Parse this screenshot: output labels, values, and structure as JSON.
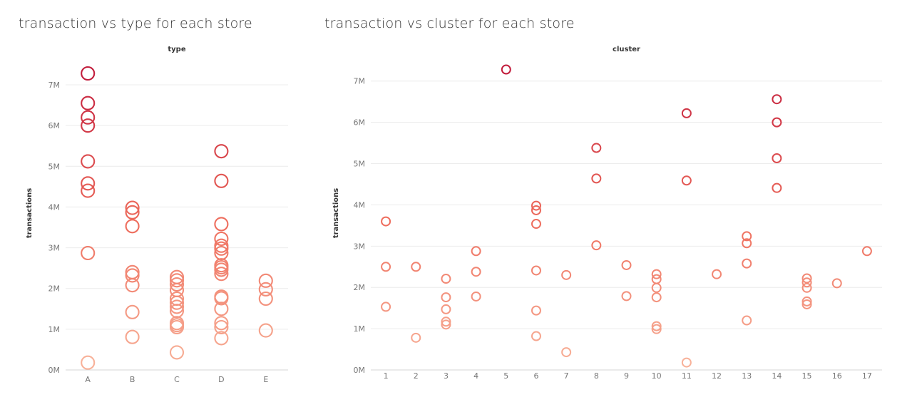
{
  "chart_data": [
    {
      "type": "scatter",
      "title": "transaction vs type for each store",
      "column_header": "type",
      "ylabel": "transactions",
      "categories": [
        "A",
        "B",
        "C",
        "D",
        "E"
      ],
      "ylim": [
        0,
        7700000
      ],
      "y_ticks": [
        "0M",
        "1M",
        "2M",
        "3M",
        "4M",
        "5M",
        "6M",
        "7M"
      ],
      "y_tick_values": [
        0,
        1000000,
        2000000,
        3000000,
        4000000,
        5000000,
        6000000,
        7000000
      ],
      "grid": true,
      "color_scale": {
        "low": "#f8b59c",
        "mid": "#ee6c5c",
        "high": "#c21d3c"
      },
      "points": [
        {
          "x": "A",
          "y": 7280000
        },
        {
          "x": "A",
          "y": 6550000
        },
        {
          "x": "A",
          "y": 6200000
        },
        {
          "x": "A",
          "y": 6000000
        },
        {
          "x": "A",
          "y": 5120000
        },
        {
          "x": "A",
          "y": 4580000
        },
        {
          "x": "A",
          "y": 4400000
        },
        {
          "x": "A",
          "y": 2870000
        },
        {
          "x": "A",
          "y": 180000
        },
        {
          "x": "B",
          "y": 3980000
        },
        {
          "x": "B",
          "y": 3870000
        },
        {
          "x": "B",
          "y": 3530000
        },
        {
          "x": "B",
          "y": 2400000
        },
        {
          "x": "B",
          "y": 2320000
        },
        {
          "x": "B",
          "y": 2080000
        },
        {
          "x": "B",
          "y": 1420000
        },
        {
          "x": "B",
          "y": 810000
        },
        {
          "x": "C",
          "y": 2280000
        },
        {
          "x": "C",
          "y": 2200000
        },
        {
          "x": "C",
          "y": 2100000
        },
        {
          "x": "C",
          "y": 1960000
        },
        {
          "x": "C",
          "y": 1750000
        },
        {
          "x": "C",
          "y": 1650000
        },
        {
          "x": "C",
          "y": 1550000
        },
        {
          "x": "C",
          "y": 1450000
        },
        {
          "x": "C",
          "y": 1150000
        },
        {
          "x": "C",
          "y": 1100000
        },
        {
          "x": "C",
          "y": 1050000
        },
        {
          "x": "C",
          "y": 430000
        },
        {
          "x": "D",
          "y": 5370000
        },
        {
          "x": "D",
          "y": 4640000
        },
        {
          "x": "D",
          "y": 3580000
        },
        {
          "x": "D",
          "y": 3220000
        },
        {
          "x": "D",
          "y": 3050000
        },
        {
          "x": "D",
          "y": 2980000
        },
        {
          "x": "D",
          "y": 2870000
        },
        {
          "x": "D",
          "y": 2570000
        },
        {
          "x": "D",
          "y": 2520000
        },
        {
          "x": "D",
          "y": 2460000
        },
        {
          "x": "D",
          "y": 2360000
        },
        {
          "x": "D",
          "y": 1800000
        },
        {
          "x": "D",
          "y": 1760000
        },
        {
          "x": "D",
          "y": 1500000
        },
        {
          "x": "D",
          "y": 1150000
        },
        {
          "x": "D",
          "y": 1050000
        },
        {
          "x": "D",
          "y": 780000
        },
        {
          "x": "E",
          "y": 2190000
        },
        {
          "x": "E",
          "y": 1980000
        },
        {
          "x": "E",
          "y": 1750000
        },
        {
          "x": "E",
          "y": 970000
        }
      ]
    },
    {
      "type": "scatter",
      "title": "transaction vs cluster for each store",
      "column_header": "cluster",
      "ylabel": "transactions",
      "categories": [
        "1",
        "2",
        "3",
        "4",
        "5",
        "6",
        "7",
        "8",
        "9",
        "10",
        "11",
        "12",
        "13",
        "14",
        "15",
        "16",
        "17"
      ],
      "ylim": [
        0,
        7600000
      ],
      "y_ticks": [
        "0M",
        "1M",
        "2M",
        "3M",
        "4M",
        "5M",
        "6M",
        "7M"
      ],
      "y_tick_values": [
        0,
        1000000,
        2000000,
        3000000,
        4000000,
        5000000,
        6000000,
        7000000
      ],
      "grid": true,
      "color_scale": {
        "low": "#f8b59c",
        "mid": "#ee6c5c",
        "high": "#c21d3c"
      },
      "points": [
        {
          "x": "1",
          "y": 3600000
        },
        {
          "x": "1",
          "y": 2500000
        },
        {
          "x": "1",
          "y": 1530000
        },
        {
          "x": "2",
          "y": 2500000
        },
        {
          "x": "2",
          "y": 780000
        },
        {
          "x": "3",
          "y": 2210000
        },
        {
          "x": "3",
          "y": 1760000
        },
        {
          "x": "3",
          "y": 1470000
        },
        {
          "x": "3",
          "y": 1170000
        },
        {
          "x": "3",
          "y": 1100000
        },
        {
          "x": "4",
          "y": 2880000
        },
        {
          "x": "4",
          "y": 2380000
        },
        {
          "x": "4",
          "y": 1780000
        },
        {
          "x": "5",
          "y": 7280000
        },
        {
          "x": "6",
          "y": 3980000
        },
        {
          "x": "6",
          "y": 3870000
        },
        {
          "x": "6",
          "y": 3540000
        },
        {
          "x": "6",
          "y": 2410000
        },
        {
          "x": "6",
          "y": 1440000
        },
        {
          "x": "6",
          "y": 820000
        },
        {
          "x": "7",
          "y": 2300000
        },
        {
          "x": "7",
          "y": 430000
        },
        {
          "x": "8",
          "y": 5380000
        },
        {
          "x": "8",
          "y": 4640000
        },
        {
          "x": "8",
          "y": 3020000
        },
        {
          "x": "9",
          "y": 2540000
        },
        {
          "x": "9",
          "y": 1790000
        },
        {
          "x": "10",
          "y": 2320000
        },
        {
          "x": "10",
          "y": 2200000
        },
        {
          "x": "10",
          "y": 1990000
        },
        {
          "x": "10",
          "y": 1760000
        },
        {
          "x": "10",
          "y": 1060000
        },
        {
          "x": "10",
          "y": 990000
        },
        {
          "x": "11",
          "y": 6220000
        },
        {
          "x": "11",
          "y": 4590000
        },
        {
          "x": "11",
          "y": 180000
        },
        {
          "x": "12",
          "y": 2320000
        },
        {
          "x": "13",
          "y": 3240000
        },
        {
          "x": "13",
          "y": 3070000
        },
        {
          "x": "13",
          "y": 2580000
        },
        {
          "x": "13",
          "y": 1200000
        },
        {
          "x": "14",
          "y": 6560000
        },
        {
          "x": "14",
          "y": 6000000
        },
        {
          "x": "14",
          "y": 5130000
        },
        {
          "x": "14",
          "y": 4410000
        },
        {
          "x": "15",
          "y": 2220000
        },
        {
          "x": "15",
          "y": 2120000
        },
        {
          "x": "15",
          "y": 1990000
        },
        {
          "x": "15",
          "y": 1660000
        },
        {
          "x": "15",
          "y": 1590000
        },
        {
          "x": "16",
          "y": 2100000
        },
        {
          "x": "17",
          "y": 2880000
        }
      ]
    }
  ]
}
